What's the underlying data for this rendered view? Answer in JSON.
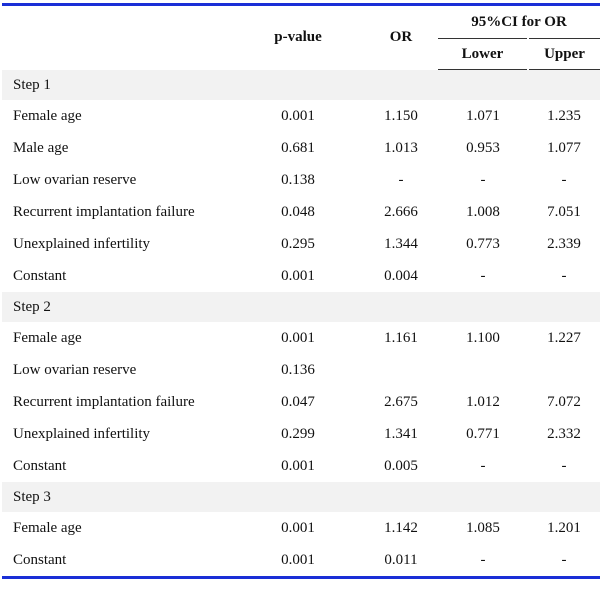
{
  "table": {
    "headers": {
      "p_value": "p-value",
      "or": "OR",
      "ci": "95%CI for OR",
      "lower": "Lower",
      "upper": "Upper"
    },
    "sections": [
      {
        "label": "Step 1",
        "rows": [
          {
            "name": "Female age",
            "p": "0.001",
            "or": "1.150",
            "lower": "1.071",
            "upper": "1.235"
          },
          {
            "name": "Male age",
            "p": "0.681",
            "or": "1.013",
            "lower": "0.953",
            "upper": "1.077"
          },
          {
            "name": "Low ovarian reserve",
            "p": "0.138",
            "or": "-",
            "lower": "-",
            "upper": "-"
          },
          {
            "name": "Recurrent implantation failure",
            "p": "0.048",
            "or": "2.666",
            "lower": "1.008",
            "upper": "7.051"
          },
          {
            "name": "Unexplained infertility",
            "p": "0.295",
            "or": "1.344",
            "lower": "0.773",
            "upper": "2.339"
          },
          {
            "name": "Constant",
            "p": "0.001",
            "or": "0.004",
            "lower": "-",
            "upper": "-"
          }
        ]
      },
      {
        "label": "Step 2",
        "rows": [
          {
            "name": "Female age",
            "p": "0.001",
            "or": "1.161",
            "lower": "1.100",
            "upper": "1.227"
          },
          {
            "name": "Low ovarian reserve",
            "p": "0.136",
            "or": "",
            "lower": "",
            "upper": ""
          },
          {
            "name": "Recurrent implantation failure",
            "p": "0.047",
            "or": "2.675",
            "lower": "1.012",
            "upper": "7.072"
          },
          {
            "name": "Unexplained infertility",
            "p": "0.299",
            "or": "1.341",
            "lower": "0.771",
            "upper": "2.332"
          },
          {
            "name": "Constant",
            "p": "0.001",
            "or": "0.005",
            "lower": "-",
            "upper": "-"
          }
        ]
      },
      {
        "label": "Step 3",
        "rows": [
          {
            "name": "Female age",
            "p": "0.001",
            "or": "1.142",
            "lower": "1.085",
            "upper": "1.201"
          },
          {
            "name": "Constant",
            "p": "0.001",
            "or": "0.011",
            "lower": "-",
            "upper": "-"
          }
        ]
      }
    ]
  }
}
